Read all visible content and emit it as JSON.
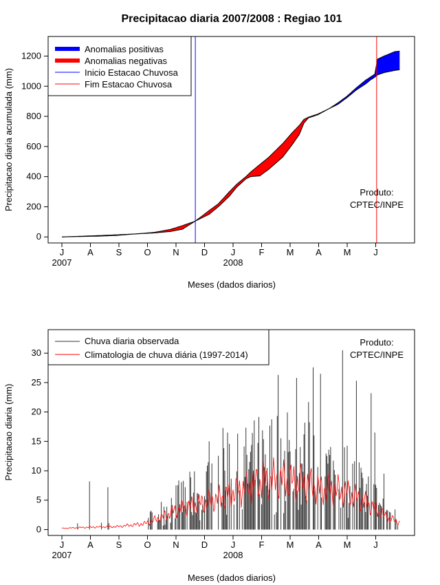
{
  "title": "Precipitacao diaria 2007/2008 : Regiao 101",
  "chart_data": [
    {
      "type": "area",
      "name": "accumulated",
      "ylabel": "Precipitacao diaria acumulada (mm)",
      "xlabel": "Meses (dados diarios)",
      "ylim": [
        -40,
        1330
      ],
      "yticks": [
        0,
        200,
        400,
        600,
        800,
        1000,
        1200
      ],
      "month_ticks": [
        "J",
        "A",
        "S",
        "O",
        "N",
        "D",
        "J",
        "F",
        "M",
        "A",
        "M",
        "J"
      ],
      "year_labels": [
        {
          "text": "2007",
          "month_index": 0
        },
        {
          "text": "2008",
          "month_index": 6
        }
      ],
      "day_range": [
        0,
        365
      ],
      "observed_anchors": [
        [
          0,
          0
        ],
        [
          40,
          9
        ],
        [
          60,
          14
        ],
        [
          80,
          20
        ],
        [
          100,
          26
        ],
        [
          118,
          36
        ],
        [
          131,
          51
        ],
        [
          145,
          105
        ],
        [
          160,
          150
        ],
        [
          170,
          200
        ],
        [
          176,
          235
        ],
        [
          182,
          270
        ],
        [
          190,
          330
        ],
        [
          200,
          385
        ],
        [
          205,
          400
        ],
        [
          215,
          405
        ],
        [
          225,
          450
        ],
        [
          240,
          530
        ],
        [
          250,
          610
        ],
        [
          258,
          680
        ],
        [
          263,
          755
        ],
        [
          268,
          790
        ],
        [
          278,
          810
        ],
        [
          290,
          850
        ],
        [
          300,
          890
        ],
        [
          310,
          935
        ],
        [
          320,
          990
        ],
        [
          330,
          1040
        ],
        [
          335,
          1060
        ],
        [
          340,
          1080
        ],
        [
          343,
          1180
        ],
        [
          350,
          1200
        ],
        [
          362,
          1230
        ],
        [
          380,
          1240
        ],
        [
          400,
          1240
        ],
        [
          430,
          1250
        ],
        [
          450,
          1255
        ]
      ],
      "climatology_anchors": [
        [
          0,
          0
        ],
        [
          40,
          5
        ],
        [
          60,
          10
        ],
        [
          80,
          20
        ],
        [
          100,
          30
        ],
        [
          118,
          50
        ],
        [
          131,
          75
        ],
        [
          145,
          105
        ],
        [
          160,
          175
        ],
        [
          170,
          220
        ],
        [
          176,
          260
        ],
        [
          182,
          300
        ],
        [
          190,
          350
        ],
        [
          200,
          400
        ],
        [
          205,
          430
        ],
        [
          215,
          480
        ],
        [
          225,
          530
        ],
        [
          240,
          620
        ],
        [
          250,
          690
        ],
        [
          258,
          740
        ],
        [
          263,
          780
        ],
        [
          268,
          795
        ],
        [
          278,
          815
        ],
        [
          290,
          850
        ],
        [
          300,
          880
        ],
        [
          310,
          925
        ],
        [
          320,
          975
        ],
        [
          330,
          1015
        ],
        [
          335,
          1040
        ],
        [
          340,
          1060
        ],
        [
          343,
          1075
        ],
        [
          350,
          1090
        ],
        [
          362,
          1105
        ],
        [
          380,
          1120
        ],
        [
          400,
          1130
        ],
        [
          430,
          1140
        ],
        [
          450,
          1145
        ]
      ],
      "rainy_season_start_day": 145,
      "rainy_season_end_day": 342,
      "colors": {
        "positive": "#0000ff",
        "negative": "#ff0000",
        "start": "#0000ff",
        "end": "#ff0000"
      },
      "legend": [
        {
          "label": "Anomalias positivas",
          "color": "#0000ff",
          "kind": "thick"
        },
        {
          "label": "Anomalias negativas",
          "color": "#ff0000",
          "kind": "thick"
        },
        {
          "label": "Inicio Estacao Chuvosa",
          "color": "#0000ff",
          "kind": "thin"
        },
        {
          "label": "Fim Estacao Chuvosa",
          "color": "#ff0000",
          "kind": "thin"
        }
      ],
      "annotation": [
        "Produto:",
        "CPTEC/INPE"
      ]
    },
    {
      "type": "bar",
      "name": "daily",
      "ylabel": "Precipitacao diaria (mm)",
      "xlabel": "Meses (dados diarios)",
      "ylim": [
        -1,
        34
      ],
      "yticks": [
        0,
        5,
        10,
        15,
        20,
        25,
        30
      ],
      "month_ticks": [
        "J",
        "A",
        "S",
        "O",
        "N",
        "D",
        "J",
        "F",
        "M",
        "A",
        "M",
        "J"
      ],
      "year_labels": [
        {
          "text": "2007",
          "month_index": 0
        },
        {
          "text": "2008",
          "month_index": 6
        }
      ],
      "notable_observed_peaks": [
        [
          30,
          8.2
        ],
        [
          50,
          7.2
        ],
        [
          160,
          15
        ],
        [
          175,
          17.3
        ],
        [
          180,
          16.5
        ],
        [
          235,
          26.3
        ],
        [
          255,
          25.8
        ],
        [
          268,
          21.7
        ],
        [
          273,
          27.6
        ],
        [
          281,
          26.5
        ],
        [
          305,
          30.5
        ],
        [
          320,
          25.3
        ],
        [
          336,
          23.2
        ],
        [
          340,
          16.5
        ],
        [
          350,
          9.5
        ],
        [
          370,
          7.8
        ],
        [
          380,
          3.8
        ]
      ],
      "climatology_anchors": [
        [
          0,
          0.2
        ],
        [
          30,
          0.4
        ],
        [
          60,
          0.5
        ],
        [
          90,
          1.0
        ],
        [
          110,
          2.2
        ],
        [
          125,
          3.4
        ],
        [
          145,
          4.2
        ],
        [
          160,
          4.8
        ],
        [
          175,
          5.5
        ],
        [
          190,
          6.5
        ],
        [
          205,
          7.5
        ],
        [
          220,
          8.3
        ],
        [
          235,
          8.5
        ],
        [
          250,
          8.2
        ],
        [
          265,
          7.9
        ],
        [
          280,
          6.8
        ],
        [
          295,
          6.8
        ],
        [
          310,
          6.2
        ],
        [
          325,
          5.0
        ],
        [
          340,
          3.6
        ],
        [
          355,
          2.0
        ],
        [
          370,
          1.0
        ],
        [
          390,
          0.6
        ],
        [
          420,
          0.5
        ],
        [
          450,
          0.3
        ]
      ],
      "colors": {
        "observed": "#333333",
        "climatology": "#ff0000"
      },
      "legend": [
        {
          "label": "Chuva diaria observada",
          "color": "#333333"
        },
        {
          "label": "Climatologia de chuva diária (1997-2014)",
          "color": "#ff0000"
        }
      ],
      "annotation": [
        "Produto:",
        "CPTEC/INPE"
      ]
    }
  ]
}
